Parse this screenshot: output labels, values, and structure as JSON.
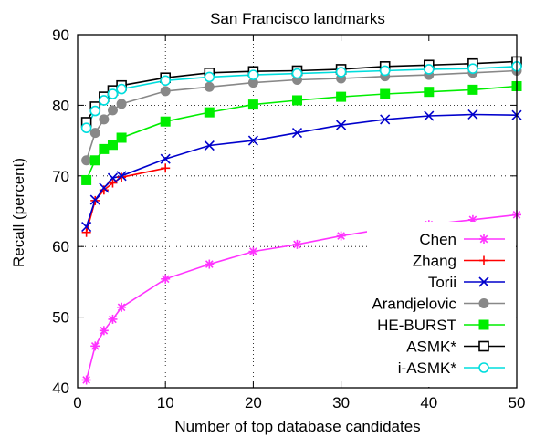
{
  "chart_data": {
    "type": "line",
    "title": "San Francisco landmarks",
    "xlabel": "Number of top database candidates",
    "ylabel": "Recall (percent)",
    "xlim": [
      0,
      50
    ],
    "ylim": [
      40,
      90
    ],
    "xticks": [
      0,
      10,
      20,
      30,
      40,
      50
    ],
    "yticks": [
      40,
      50,
      60,
      70,
      80,
      90
    ],
    "grid": true,
    "legend_position": "bottom-right",
    "series": [
      {
        "name": "Chen",
        "color": "#ff33ff",
        "marker": "asterisk",
        "x": [
          1,
          2,
          3,
          4,
          5,
          10,
          15,
          20,
          25,
          30,
          35,
          40,
          45,
          50
        ],
        "y": [
          41.1,
          45.9,
          48.1,
          49.7,
          51.4,
          55.4,
          57.5,
          59.3,
          60.3,
          61.5,
          62.5,
          63.1,
          63.8,
          64.5
        ]
      },
      {
        "name": "Zhang",
        "color": "#ff0000",
        "marker": "plus",
        "x": [
          1,
          2,
          3,
          4,
          5,
          10
        ],
        "y": [
          62.0,
          66.5,
          68.0,
          69.0,
          69.8,
          71.1
        ]
      },
      {
        "name": "Torii",
        "color": "#0000cc",
        "marker": "cross",
        "x": [
          1,
          2,
          3,
          4,
          5,
          10,
          15,
          20,
          25,
          30,
          35,
          40,
          45,
          50
        ],
        "y": [
          62.8,
          66.6,
          68.3,
          69.7,
          70.0,
          72.4,
          74.3,
          75.0,
          76.1,
          77.2,
          78.0,
          78.5,
          78.7,
          78.6
        ]
      },
      {
        "name": "Arandjelovic",
        "color": "#888888",
        "marker": "circle-filled",
        "x": [
          1,
          2,
          3,
          4,
          5,
          10,
          15,
          20,
          25,
          30,
          35,
          40,
          45,
          50
        ],
        "y": [
          72.2,
          76.1,
          78.0,
          79.3,
          80.2,
          82.0,
          82.6,
          83.2,
          83.6,
          83.8,
          84.1,
          84.3,
          84.6,
          84.9
        ]
      },
      {
        "name": "HE-BURST",
        "color": "#00ee00",
        "marker": "square-filled",
        "x": [
          1,
          2,
          3,
          4,
          5,
          10,
          15,
          20,
          25,
          30,
          35,
          40,
          45,
          50
        ],
        "y": [
          69.4,
          72.2,
          73.8,
          74.4,
          75.4,
          77.7,
          79.0,
          80.1,
          80.7,
          81.2,
          81.6,
          81.9,
          82.2,
          82.7
        ]
      },
      {
        "name": "ASMK*",
        "color": "#000000",
        "marker": "square-open",
        "x": [
          1,
          2,
          3,
          4,
          5,
          10,
          15,
          20,
          25,
          30,
          35,
          40,
          45,
          50
        ],
        "y": [
          77.6,
          79.8,
          81.2,
          82.1,
          82.8,
          83.9,
          84.6,
          84.8,
          84.9,
          85.1,
          85.5,
          85.7,
          85.9,
          86.2
        ]
      },
      {
        "name": "i-ASMK*",
        "color": "#00dddd",
        "marker": "circle-open",
        "x": [
          1,
          2,
          3,
          4,
          5,
          10,
          15,
          20,
          25,
          30,
          35,
          40,
          45,
          50
        ],
        "y": [
          76.8,
          79.2,
          80.7,
          81.6,
          82.3,
          83.5,
          84.0,
          84.3,
          84.5,
          84.7,
          84.9,
          85.1,
          85.2,
          85.5
        ]
      }
    ]
  }
}
